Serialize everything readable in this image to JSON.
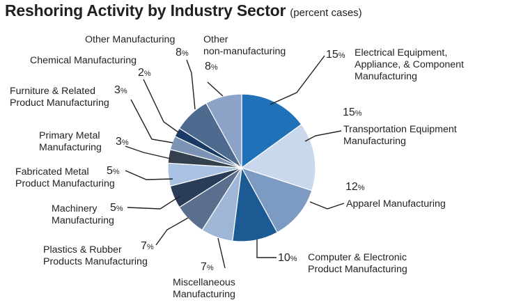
{
  "chart_data": {
    "type": "pie",
    "title": "Reshoring Activity by Industry Sector",
    "subtitle": "(percent cases)",
    "unit": "%",
    "slices": [
      {
        "label": "Electrical Equipment, Appliance, & Component Manufacturing",
        "lines": [
          "Electrical Equipment,",
          "Appliance, & Component",
          "Manufacturing"
        ],
        "value": 15,
        "color": "#1f72b8"
      },
      {
        "label": "Transportation Equipment Manufacturing",
        "lines": [
          "Transportation Equipment",
          "Manufacturing"
        ],
        "value": 15,
        "color": "#c9d8ec"
      },
      {
        "label": "Apparel Manufacturing",
        "lines": [
          "Apparel Manufacturing"
        ],
        "value": 12,
        "color": "#7d9ac3"
      },
      {
        "label": "Computer & Electronic Product Manufacturing",
        "lines": [
          "Computer & Electronic",
          "Product Manufacturing"
        ],
        "value": 10,
        "color": "#1c5a94"
      },
      {
        "label": "Miscellaneous Manufacturing",
        "lines": [
          "Miscellaneous",
          "Manufacturing"
        ],
        "value": 7,
        "color": "#9fb6d6"
      },
      {
        "label": "Plastics & Rubber Products Manufacturing",
        "lines": [
          "Plastics & Rubber",
          "Products Manufacturing"
        ],
        "value": 7,
        "color": "#5a6f8e"
      },
      {
        "label": "Machinery Manufacturing",
        "lines": [
          "Machinery",
          "Manufacturing"
        ],
        "value": 5,
        "color": "#2a3d58"
      },
      {
        "label": "Fabricated Metal Product Manufacturing",
        "lines": [
          "Fabricated Metal",
          "Product Manufacturing"
        ],
        "value": 5,
        "color": "#a9c1e3"
      },
      {
        "label": "Primary Metal Manufacturing",
        "lines": [
          "Primary Metal",
          "Manufacturing"
        ],
        "value": 3,
        "color": "#35404f"
      },
      {
        "label": "Furniture & Related Product Manufacturing",
        "lines": [
          "Furniture & Related",
          "Product Manufacturing"
        ],
        "value": 3,
        "color": "#7c93b5"
      },
      {
        "label": "Chemical Manufacturing",
        "lines": [
          "Chemical Manufacturing"
        ],
        "value": 2,
        "color": "#1a3a66"
      },
      {
        "label": "Other Manufacturing",
        "lines": [
          "Other Manufacturing"
        ],
        "value": 8,
        "color": "#4e6a8f"
      },
      {
        "label": "Other non-manufacturing",
        "lines": [
          "Other",
          "non-manufacturing"
        ],
        "value": 8,
        "color": "#8aa3c6"
      }
    ]
  }
}
